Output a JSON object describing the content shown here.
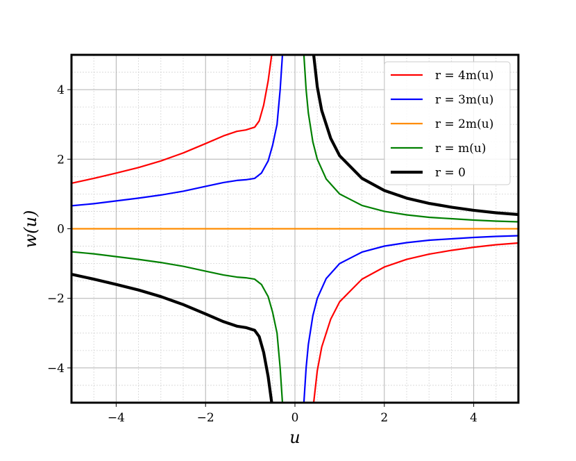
{
  "chart_data": {
    "type": "line",
    "xlabel": "u",
    "ylabel": "w(u)",
    "xlim": [
      -5,
      5
    ],
    "ylim": [
      -5,
      5
    ],
    "xticks": [
      -4,
      -2,
      0,
      2,
      4
    ],
    "yticks": [
      -4,
      -2,
      0,
      2,
      4
    ],
    "xtick_labels": [
      "−4",
      "−2",
      "0",
      "2",
      "4"
    ],
    "ytick_labels": [
      "−4",
      "−2",
      "0",
      "2",
      "4"
    ],
    "grid": "major and minor",
    "legend_position": "top-right",
    "series": [
      {
        "name": "r = 4m(u)",
        "color": "#ff0000",
        "width": 2.2,
        "segments": [
          [
            [
              -5,
              1.31
            ],
            [
              -4.5,
              1.45
            ],
            [
              -4,
              1.6
            ],
            [
              -3.5,
              1.76
            ],
            [
              -3,
              1.95
            ],
            [
              -2.5,
              2.18
            ],
            [
              -2,
              2.45
            ],
            [
              -1.6,
              2.67
            ],
            [
              -1.3,
              2.8
            ],
            [
              -1.1,
              2.84
            ],
            [
              -0.9,
              2.92
            ],
            [
              -0.8,
              3.1
            ],
            [
              -0.7,
              3.55
            ],
            [
              -0.6,
              4.25
            ],
            [
              -0.52,
              5.0
            ]
          ],
          [
            [
              0.42,
              -5.0
            ],
            [
              0.5,
              -4.08
            ],
            [
              0.6,
              -3.4
            ],
            [
              0.8,
              -2.6
            ],
            [
              1.0,
              -2.1
            ],
            [
              1.5,
              -1.45
            ],
            [
              2.0,
              -1.1
            ],
            [
              2.5,
              -0.88
            ],
            [
              3.0,
              -0.73
            ],
            [
              3.5,
              -0.62
            ],
            [
              4.0,
              -0.53
            ],
            [
              4.5,
              -0.46
            ],
            [
              5.0,
              -0.41
            ]
          ]
        ]
      },
      {
        "name": "r = 3m(u)",
        "color": "#0000ff",
        "width": 2.2,
        "segments": [
          [
            [
              -5,
              0.66
            ],
            [
              -4.5,
              0.72
            ],
            [
              -4,
              0.8
            ],
            [
              -3.5,
              0.88
            ],
            [
              -3,
              0.97
            ],
            [
              -2.5,
              1.08
            ],
            [
              -2,
              1.22
            ],
            [
              -1.6,
              1.33
            ],
            [
              -1.3,
              1.39
            ],
            [
              -1.1,
              1.41
            ],
            [
              -0.9,
              1.45
            ],
            [
              -0.75,
              1.6
            ],
            [
              -0.6,
              1.95
            ],
            [
              -0.5,
              2.4
            ],
            [
              -0.4,
              3.0
            ],
            [
              -0.33,
              4.0
            ],
            [
              -0.28,
              5.0
            ]
          ],
          [
            [
              0.2,
              -5.0
            ],
            [
              0.25,
              -4.0
            ],
            [
              0.3,
              -3.33
            ],
            [
              0.4,
              -2.5
            ],
            [
              0.5,
              -2.0
            ],
            [
              0.7,
              -1.43
            ],
            [
              1.0,
              -1.0
            ],
            [
              1.5,
              -0.67
            ],
            [
              2.0,
              -0.5
            ],
            [
              2.5,
              -0.4
            ],
            [
              3.0,
              -0.33
            ],
            [
              3.5,
              -0.29
            ],
            [
              4.0,
              -0.25
            ],
            [
              4.5,
              -0.22
            ],
            [
              5.0,
              -0.2
            ]
          ]
        ]
      },
      {
        "name": "r = 2m(u)",
        "color": "#ff8c00",
        "width": 2.2,
        "segments": [
          [
            [
              -5,
              0
            ],
            [
              5,
              0
            ]
          ]
        ]
      },
      {
        "name": "r = m(u)",
        "color": "#008000",
        "width": 2.2,
        "segments": [
          [
            [
              0.2,
              5.0
            ],
            [
              0.25,
              4.0
            ],
            [
              0.3,
              3.33
            ],
            [
              0.4,
              2.5
            ],
            [
              0.5,
              2.0
            ],
            [
              0.7,
              1.43
            ],
            [
              1.0,
              1.0
            ],
            [
              1.5,
              0.67
            ],
            [
              2.0,
              0.5
            ],
            [
              2.5,
              0.4
            ],
            [
              3.0,
              0.33
            ],
            [
              3.5,
              0.29
            ],
            [
              4.0,
              0.25
            ],
            [
              4.5,
              0.22
            ],
            [
              5.0,
              0.2
            ]
          ],
          [
            [
              -5,
              -0.66
            ],
            [
              -4.5,
              -0.72
            ],
            [
              -4,
              -0.8
            ],
            [
              -3.5,
              -0.88
            ],
            [
              -3,
              -0.97
            ],
            [
              -2.5,
              -1.08
            ],
            [
              -2,
              -1.22
            ],
            [
              -1.6,
              -1.33
            ],
            [
              -1.3,
              -1.39
            ],
            [
              -1.1,
              -1.41
            ],
            [
              -0.9,
              -1.45
            ],
            [
              -0.75,
              -1.6
            ],
            [
              -0.6,
              -1.95
            ],
            [
              -0.5,
              -2.4
            ],
            [
              -0.4,
              -3.0
            ],
            [
              -0.33,
              -4.0
            ],
            [
              -0.28,
              -5.0
            ]
          ]
        ]
      },
      {
        "name": "r = 0",
        "color": "#000000",
        "width": 4.2,
        "segments": [
          [
            [
              0.42,
              5.0
            ],
            [
              0.5,
              4.08
            ],
            [
              0.6,
              3.4
            ],
            [
              0.8,
              2.6
            ],
            [
              1.0,
              2.1
            ],
            [
              1.5,
              1.45
            ],
            [
              2.0,
              1.1
            ],
            [
              2.5,
              0.88
            ],
            [
              3.0,
              0.73
            ],
            [
              3.5,
              0.62
            ],
            [
              4.0,
              0.53
            ],
            [
              4.5,
              0.46
            ],
            [
              5.0,
              0.41
            ]
          ],
          [
            [
              -5,
              -1.31
            ],
            [
              -4.5,
              -1.45
            ],
            [
              -4,
              -1.6
            ],
            [
              -3.5,
              -1.76
            ],
            [
              -3,
              -1.95
            ],
            [
              -2.5,
              -2.18
            ],
            [
              -2,
              -2.45
            ],
            [
              -1.6,
              -2.67
            ],
            [
              -1.3,
              -2.8
            ],
            [
              -1.1,
              -2.84
            ],
            [
              -0.9,
              -2.92
            ],
            [
              -0.8,
              -3.1
            ],
            [
              -0.7,
              -3.55
            ],
            [
              -0.6,
              -4.25
            ],
            [
              -0.52,
              -5.0
            ]
          ]
        ]
      }
    ]
  }
}
